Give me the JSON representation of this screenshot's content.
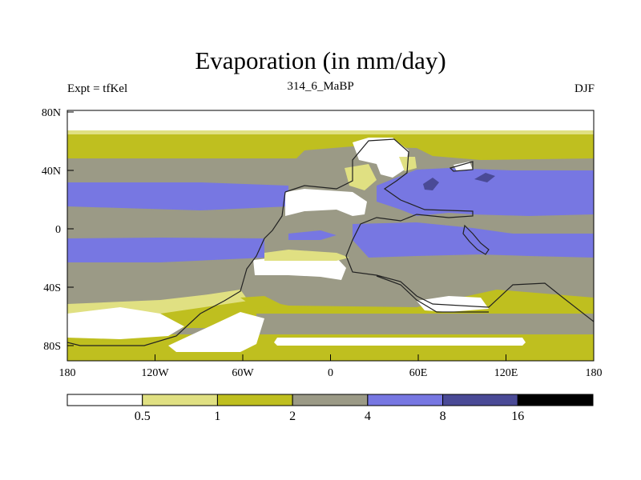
{
  "title": "Evaporation (in mm/day)",
  "subtitle_left": "Expt = tfKel",
  "subtitle_center": "314_6_MaBP",
  "subtitle_right": "DJF",
  "lat_labels": [
    "80N",
    "40N",
    "0",
    "40S",
    "80S"
  ],
  "lon_labels": [
    "180",
    "120W",
    "60W",
    "0",
    "60E",
    "120E",
    "180"
  ],
  "colorbar": {
    "colors": [
      "#ffffff",
      "#e0e082",
      "#bfbf1f",
      "#9b9a86",
      "#7777e2",
      "#4a4a96",
      "#000000"
    ],
    "labels": [
      "0.5",
      "1",
      "2",
      "4",
      "8",
      "16"
    ]
  },
  "chart_data": {
    "type": "heatmap",
    "title": "Evaporation (in mm/day)",
    "variable_units": "mm/day",
    "season": "DJF",
    "experiment": "tfKel",
    "period": "314_6_MaBP",
    "contour_levels": [
      0.5,
      1,
      2,
      4,
      8,
      16
    ],
    "lat_range": [
      -90,
      90
    ],
    "lon_range": [
      -180,
      180
    ]
  }
}
